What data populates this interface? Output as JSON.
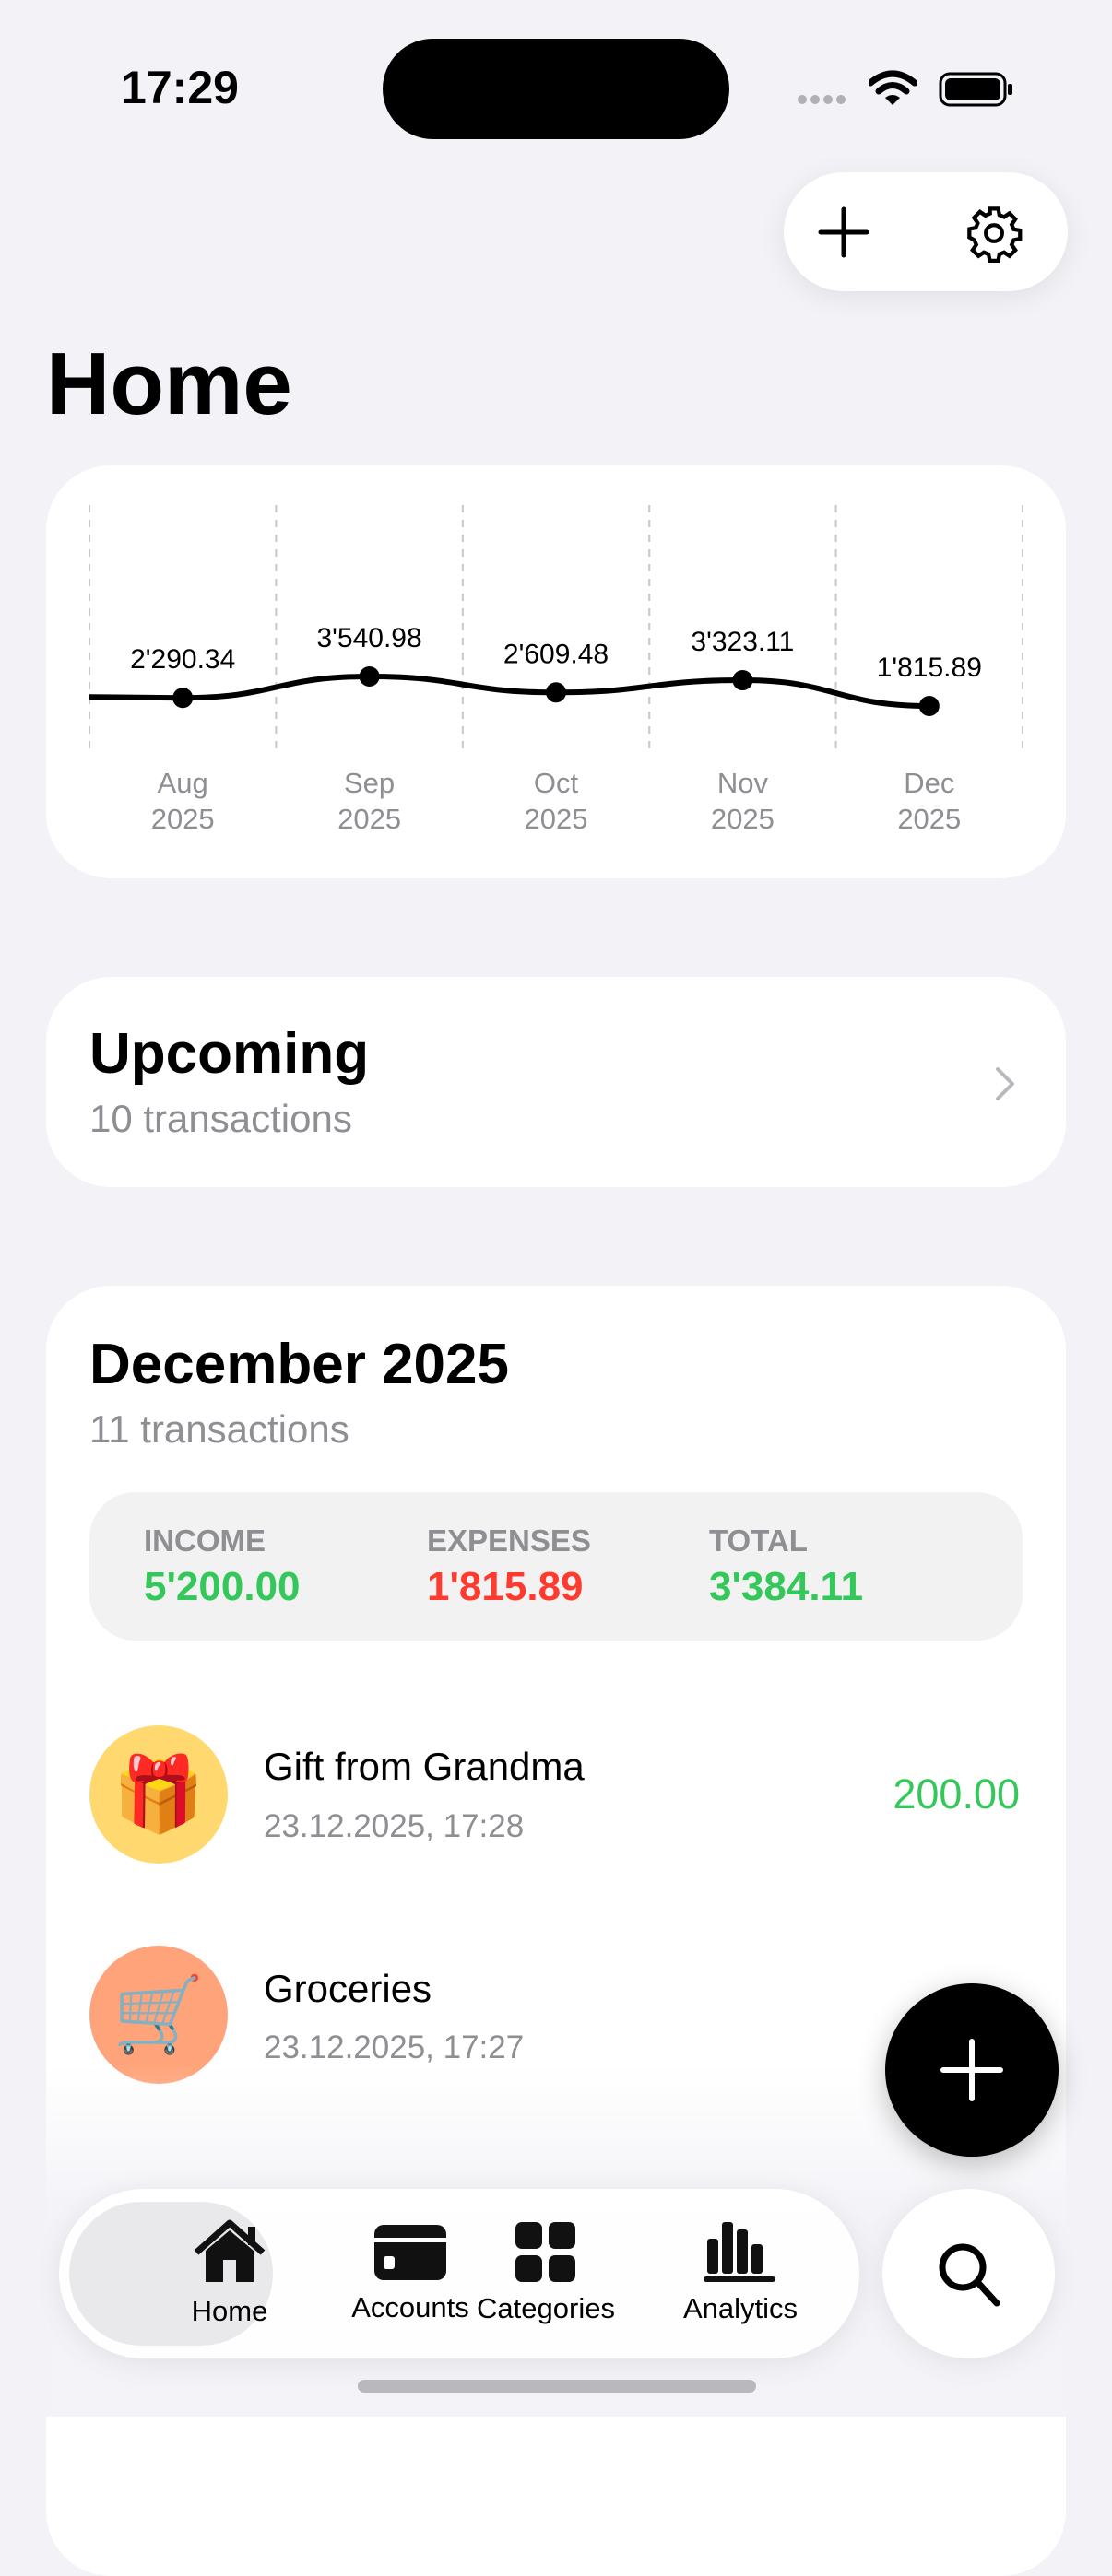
{
  "status_bar": {
    "time": "17:29"
  },
  "header": {
    "title": "Home",
    "add_icon": "plus-icon",
    "settings_icon": "gear-icon"
  },
  "chart_data": {
    "type": "line",
    "categories": [
      "Aug 2025",
      "Sep 2025",
      "Oct 2025",
      "Nov 2025",
      "Dec 2025"
    ],
    "month_labels": [
      [
        "Aug",
        "2025"
      ],
      [
        "Sep",
        "2025"
      ],
      [
        "Oct",
        "2025"
      ],
      [
        "Nov",
        "2025"
      ],
      [
        "Dec",
        "2025"
      ]
    ],
    "values": [
      2290.34,
      3540.98,
      2609.48,
      3323.11,
      1815.89
    ],
    "data_labels": [
      "2'290.34",
      "3'540.98",
      "2'609.48",
      "3'323.11",
      "1'815.89"
    ],
    "grid": "vertical dashed",
    "line_color": "#000000"
  },
  "upcoming": {
    "title": "Upcoming",
    "subtitle": "10 transactions"
  },
  "month": {
    "title": "December 2025",
    "subtitle": "11 transactions",
    "summary": {
      "income_label": "INCOME",
      "income": "5'200.00",
      "expenses_label": "EXPENSES",
      "expenses": "1'815.89",
      "total_label": "TOTAL",
      "total": "3'384.11"
    },
    "transactions": [
      {
        "title": "Gift from Grandma",
        "date": "23.12.2025, 17:28",
        "amount": "200.00",
        "icon": "🎁",
        "icon_bg": "#ffd970",
        "amount_color": "#34c759"
      },
      {
        "title": "Groceries",
        "date": "23.12.2025, 17:27",
        "icon": "🛒",
        "icon_bg": "#ffa47a"
      }
    ]
  },
  "colors": {
    "income": "#34c759",
    "expenses": "#ff3b30",
    "total": "#34c759"
  },
  "tabbar": {
    "items": [
      {
        "label": "Home",
        "icon": "house-icon",
        "selected": true
      },
      {
        "label": "Accounts",
        "icon": "credit-card-icon"
      },
      {
        "label": "Categories",
        "icon": "grid-icon"
      },
      {
        "label": "Analytics",
        "icon": "bar-chart-icon"
      }
    ]
  }
}
